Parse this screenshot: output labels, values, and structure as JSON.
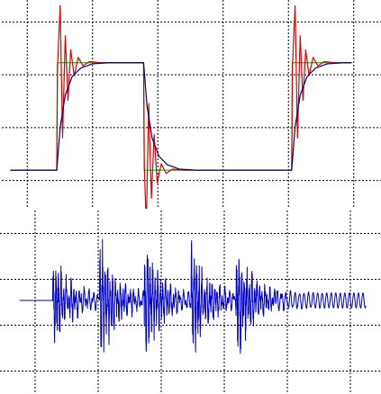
{
  "chart_data": [
    {
      "type": "line",
      "title": "",
      "xlabel": "",
      "ylabel": "",
      "x_grid_count": 6,
      "y_grid_count": 4,
      "grid": true,
      "xlim": [
        0,
        10
      ],
      "ylim": [
        -0.3,
        1.5
      ],
      "series": [
        {
          "color": "#00cc00",
          "points": [
            [
              0,
              0
            ],
            [
              1.35,
              0
            ],
            [
              1.37,
              1
            ],
            [
              3.9,
              1
            ],
            [
              3.92,
              0
            ],
            [
              8.25,
              0
            ],
            [
              8.27,
              1
            ],
            [
              10,
              1
            ]
          ]
        },
        {
          "color": "#dd0000",
          "points": [
            [
              0,
              0
            ],
            [
              1.35,
              0
            ],
            [
              1.37,
              0.95
            ],
            [
              1.45,
              1.53
            ],
            [
              1.52,
              0.3
            ],
            [
              1.6,
              1.25
            ],
            [
              1.68,
              0.65
            ],
            [
              1.76,
              1.12
            ],
            [
              1.86,
              0.88
            ],
            [
              1.98,
              1.05
            ],
            [
              2.12,
              0.97
            ],
            [
              2.3,
              1.01
            ],
            [
              2.6,
              1
            ],
            [
              3.9,
              1
            ],
            [
              3.92,
              0.05
            ],
            [
              3.98,
              -0.53
            ],
            [
              4.05,
              0.62
            ],
            [
              4.13,
              -0.26
            ],
            [
              4.21,
              0.33
            ],
            [
              4.3,
              -0.12
            ],
            [
              4.42,
              0.06
            ],
            [
              4.56,
              -0.03
            ],
            [
              4.75,
              0.01
            ],
            [
              5.1,
              0
            ],
            [
              8.25,
              0
            ],
            [
              8.27,
              0.95
            ],
            [
              8.35,
              1.53
            ],
            [
              8.42,
              0.3
            ],
            [
              8.5,
              1.25
            ],
            [
              8.58,
              0.65
            ],
            [
              8.66,
              1.12
            ],
            [
              8.76,
              0.88
            ],
            [
              8.88,
              1.05
            ],
            [
              9.02,
              0.97
            ],
            [
              9.2,
              1.01
            ],
            [
              9.5,
              1
            ],
            [
              10,
              1
            ]
          ]
        },
        {
          "color": "#000080",
          "points": [
            [
              0,
              0
            ],
            [
              1.35,
              0
            ],
            [
              1.45,
              0.4
            ],
            [
              1.6,
              0.7
            ],
            [
              1.8,
              0.87
            ],
            [
              2.05,
              0.95
            ],
            [
              2.4,
              0.99
            ],
            [
              2.9,
              1
            ],
            [
              3.9,
              1
            ],
            [
              4.0,
              0.6
            ],
            [
              4.15,
              0.3
            ],
            [
              4.35,
              0.13
            ],
            [
              4.6,
              0.05
            ],
            [
              4.95,
              0.01
            ],
            [
              5.5,
              0
            ],
            [
              8.25,
              0
            ],
            [
              8.35,
              0.4
            ],
            [
              8.5,
              0.7
            ],
            [
              8.7,
              0.87
            ],
            [
              8.95,
              0.95
            ],
            [
              9.3,
              0.99
            ],
            [
              9.8,
              1
            ],
            [
              10,
              1
            ]
          ]
        }
      ]
    },
    {
      "type": "line",
      "title": "",
      "xlabel": "",
      "ylabel": "",
      "x_grid_count": 6,
      "y_grid_count": 4,
      "grid": true,
      "xlim": [
        0,
        10
      ],
      "ylim": [
        -1.5,
        1.5
      ],
      "series": [
        {
          "color": "#0000cc",
          "baseline": 0,
          "bursts": [
            {
              "t": 0.95,
              "amp": 1.05
            },
            {
              "t": 2.3,
              "amp": 1.35
            },
            {
              "t": 3.6,
              "amp": 1.3
            },
            {
              "t": 4.95,
              "amp": 1.3
            },
            {
              "t": 6.25,
              "amp": 1.4
            }
          ],
          "steady_oscillation": {
            "start": 7.4,
            "amp": 0.15
          }
        }
      ]
    }
  ]
}
